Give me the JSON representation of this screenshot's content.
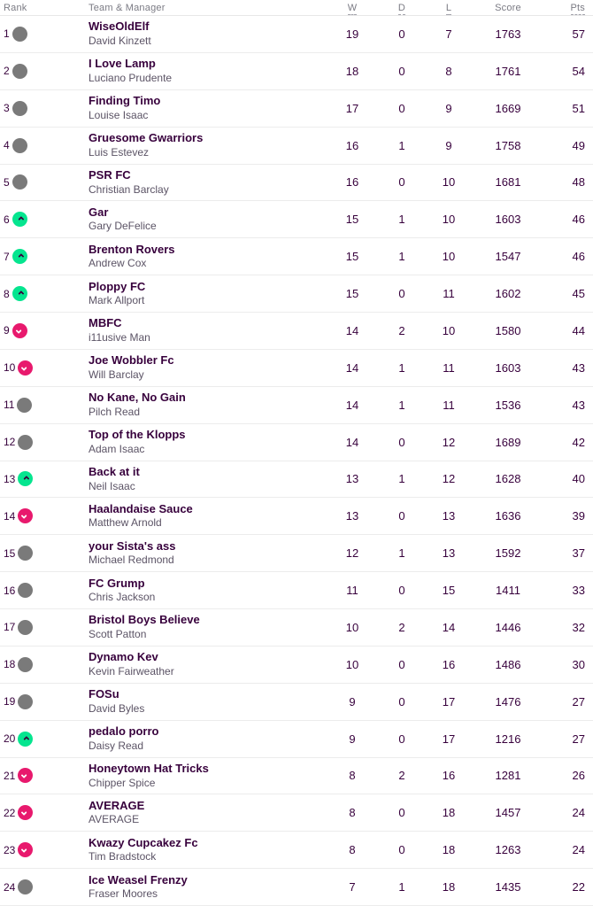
{
  "colors": {
    "text_primary": "#37003c",
    "text_manager": "#5b5365",
    "header_text": "#7b7b84",
    "row_divider": "#ececec",
    "movement_up": "#05e58f",
    "movement_down": "#e8196d",
    "movement_same": "#7a7a7a",
    "up_chevron": "#37003c",
    "down_chevron": "#ffffff"
  },
  "table": {
    "headers": {
      "rank": "Rank",
      "team": "Team & Manager",
      "w": "W",
      "d": "D",
      "l": "L",
      "score": "Score",
      "pts": "Pts"
    },
    "rows": [
      {
        "rank": 1,
        "movement": "same",
        "team": "WiseOldElf",
        "manager": "David Kinzett",
        "w": 19,
        "d": 0,
        "l": 7,
        "score": 1763,
        "pts": 57
      },
      {
        "rank": 2,
        "movement": "same",
        "team": "I Love Lamp",
        "manager": "Luciano Prudente",
        "w": 18,
        "d": 0,
        "l": 8,
        "score": 1761,
        "pts": 54
      },
      {
        "rank": 3,
        "movement": "same",
        "team": "Finding Timo",
        "manager": "Louise Isaac",
        "w": 17,
        "d": 0,
        "l": 9,
        "score": 1669,
        "pts": 51
      },
      {
        "rank": 4,
        "movement": "same",
        "team": "Gruesome Gwarriors",
        "manager": "Luis Estevez",
        "w": 16,
        "d": 1,
        "l": 9,
        "score": 1758,
        "pts": 49
      },
      {
        "rank": 5,
        "movement": "same",
        "team": "PSR FC",
        "manager": "Christian Barclay",
        "w": 16,
        "d": 0,
        "l": 10,
        "score": 1681,
        "pts": 48
      },
      {
        "rank": 6,
        "movement": "up",
        "team": "Gar",
        "manager": "Gary DeFelice",
        "w": 15,
        "d": 1,
        "l": 10,
        "score": 1603,
        "pts": 46
      },
      {
        "rank": 7,
        "movement": "up",
        "team": "Brenton Rovers",
        "manager": "Andrew Cox",
        "w": 15,
        "d": 1,
        "l": 10,
        "score": 1547,
        "pts": 46
      },
      {
        "rank": 8,
        "movement": "up",
        "team": "Ploppy FC",
        "manager": "Mark Allport",
        "w": 15,
        "d": 0,
        "l": 11,
        "score": 1602,
        "pts": 45
      },
      {
        "rank": 9,
        "movement": "down",
        "team": "MBFC",
        "manager": "i11usive Man",
        "w": 14,
        "d": 2,
        "l": 10,
        "score": 1580,
        "pts": 44
      },
      {
        "rank": 10,
        "movement": "down",
        "team": "Joe Wobbler Fc",
        "manager": "Will Barclay",
        "w": 14,
        "d": 1,
        "l": 11,
        "score": 1603,
        "pts": 43
      },
      {
        "rank": 11,
        "movement": "same",
        "team": "No Kane, No Gain",
        "manager": "Pilch Read",
        "w": 14,
        "d": 1,
        "l": 11,
        "score": 1536,
        "pts": 43
      },
      {
        "rank": 12,
        "movement": "same",
        "team": "Top of the Klopps",
        "manager": "Adam Isaac",
        "w": 14,
        "d": 0,
        "l": 12,
        "score": 1689,
        "pts": 42
      },
      {
        "rank": 13,
        "movement": "up",
        "team": "Back at it",
        "manager": "Neil Isaac",
        "w": 13,
        "d": 1,
        "l": 12,
        "score": 1628,
        "pts": 40
      },
      {
        "rank": 14,
        "movement": "down",
        "team": "Haalandaise Sauce",
        "manager": "Matthew Arnold",
        "w": 13,
        "d": 0,
        "l": 13,
        "score": 1636,
        "pts": 39
      },
      {
        "rank": 15,
        "movement": "same",
        "team": "your Sista's ass",
        "manager": "Michael Redmond",
        "w": 12,
        "d": 1,
        "l": 13,
        "score": 1592,
        "pts": 37
      },
      {
        "rank": 16,
        "movement": "same",
        "team": "FC Grump",
        "manager": "Chris Jackson",
        "w": 11,
        "d": 0,
        "l": 15,
        "score": 1411,
        "pts": 33
      },
      {
        "rank": 17,
        "movement": "same",
        "team": "Bristol Boys Believe",
        "manager": "Scott Patton",
        "w": 10,
        "d": 2,
        "l": 14,
        "score": 1446,
        "pts": 32
      },
      {
        "rank": 18,
        "movement": "same",
        "team": "Dynamo Kev",
        "manager": "Kevin Fairweather",
        "w": 10,
        "d": 0,
        "l": 16,
        "score": 1486,
        "pts": 30
      },
      {
        "rank": 19,
        "movement": "same",
        "team": "FOSu",
        "manager": "David Byles",
        "w": 9,
        "d": 0,
        "l": 17,
        "score": 1476,
        "pts": 27
      },
      {
        "rank": 20,
        "movement": "up",
        "team": "pedalo porro",
        "manager": "Daisy Read",
        "w": 9,
        "d": 0,
        "l": 17,
        "score": 1216,
        "pts": 27
      },
      {
        "rank": 21,
        "movement": "down",
        "team": "Honeytown Hat Tricks",
        "manager": "Chipper Spice",
        "w": 8,
        "d": 2,
        "l": 16,
        "score": 1281,
        "pts": 26
      },
      {
        "rank": 22,
        "movement": "down",
        "team": "AVERAGE",
        "manager": "AVERAGE",
        "w": 8,
        "d": 0,
        "l": 18,
        "score": 1457,
        "pts": 24
      },
      {
        "rank": 23,
        "movement": "down",
        "team": "Kwazy Cupcakez Fc",
        "manager": "Tim Bradstock",
        "w": 8,
        "d": 0,
        "l": 18,
        "score": 1263,
        "pts": 24
      },
      {
        "rank": 24,
        "movement": "same",
        "team": "Ice Weasel Frenzy",
        "manager": "Fraser Moores",
        "w": 7,
        "d": 1,
        "l": 18,
        "score": 1435,
        "pts": 22
      }
    ]
  }
}
